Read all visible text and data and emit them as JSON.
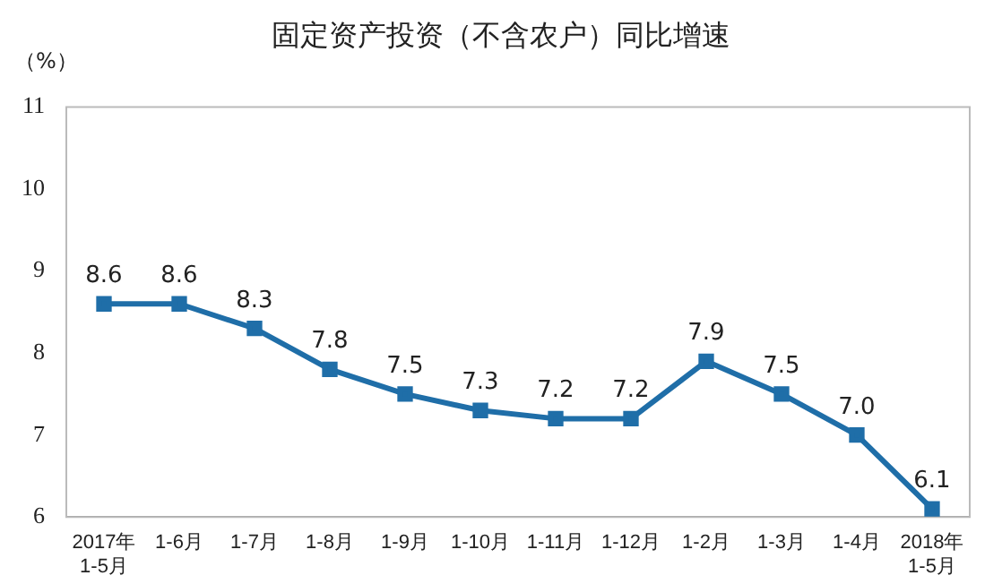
{
  "chart_data": {
    "type": "line",
    "title": "固定资产投资（不含农户）同比增速",
    "ylabel": "（%）",
    "categories": [
      "2017年\n1-5月",
      "1-6月",
      "1-7月",
      "1-8月",
      "1-9月",
      "1-10月",
      "1-11月",
      "1-12月",
      "1-2月",
      "1-3月",
      "1-4月",
      "2018年\n1-5月"
    ],
    "series": [
      {
        "color": "#1f6ea8",
        "values": [
          8.6,
          8.6,
          8.3,
          7.8,
          7.5,
          7.3,
          7.2,
          7.2,
          7.9,
          7.5,
          7.0,
          6.1
        ]
      }
    ],
    "value_labels": [
      "8.6",
      "8.6",
      "8.3",
      "7.8",
      "7.5",
      "7.3",
      "7.2",
      "7.2",
      "7.9",
      "7.5",
      "7.0",
      "6.1"
    ],
    "ylim": [
      6,
      11
    ],
    "yticks": [
      6,
      7,
      8,
      9,
      10,
      11
    ],
    "grid": false,
    "legend": false,
    "marker": "square",
    "line_style": "solid"
  }
}
